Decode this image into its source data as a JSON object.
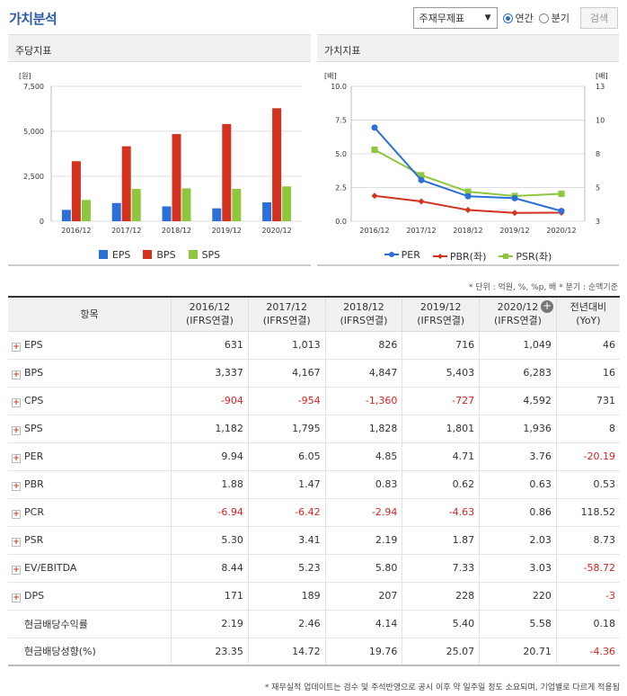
{
  "title": "가치분석",
  "controls": {
    "select_value": "주재무제표",
    "radio_annual": "연간",
    "radio_quarter": "분기",
    "search_label": "검색"
  },
  "left_panel": {
    "title": "주당지표"
  },
  "right_panel": {
    "title": "가치지표"
  },
  "chart_data": [
    {
      "type": "bar",
      "categories": [
        "2016/12",
        "2017/12",
        "2018/12",
        "2019/12",
        "2020/12"
      ],
      "series": [
        {
          "name": "EPS",
          "values": [
            631,
            1013,
            826,
            716,
            1049
          ],
          "color": "#2c6fd6"
        },
        {
          "name": "BPS",
          "values": [
            3337,
            4167,
            4847,
            5403,
            6283
          ],
          "color": "#d2321e"
        },
        {
          "name": "SPS",
          "values": [
            1182,
            1795,
            1828,
            1801,
            1936
          ],
          "color": "#8ec63f"
        }
      ],
      "ylabel": "[원]",
      "yticks": [
        "7,500",
        "5,000",
        "2,500",
        "0"
      ],
      "ylim": [
        0,
        7500
      ],
      "legend": "bottom"
    },
    {
      "type": "line",
      "categories": [
        "2016/12",
        "2017/12",
        "2018/12",
        "2019/12",
        "2020/12"
      ],
      "series": [
        {
          "name": "PER",
          "values": [
            9.94,
            6.05,
            4.85,
            4.71,
            3.76
          ],
          "color": "#2c6fd6",
          "axis": "right"
        },
        {
          "name": "PBR(좌)",
          "values": [
            1.88,
            1.47,
            0.83,
            0.62,
            0.63
          ],
          "color": "#d2321e",
          "axis": "left"
        },
        {
          "name": "PSR(좌)",
          "values": [
            5.3,
            3.41,
            2.19,
            1.87,
            2.03
          ],
          "color": "#8ec63f",
          "axis": "left"
        }
      ],
      "ylabel_left": "[배]",
      "ylabel_right": "[배]",
      "yticks_left": [
        "10.0",
        "7.5",
        "5.0",
        "2.5",
        "0.0"
      ],
      "yticks_right": [
        "13",
        "10",
        "8",
        "5",
        "3"
      ],
      "ylim_left": [
        0,
        10
      ],
      "ylim_right": [
        3,
        13
      ],
      "legend": "bottom"
    }
  ],
  "unit_note": "* 단위 : 억원, %, %p, 배    * 분기 : 순액기준",
  "table": {
    "headers": [
      "항목",
      [
        "2016/12",
        "(IFRS연결)"
      ],
      [
        "2017/12",
        "(IFRS연결)"
      ],
      [
        "2018/12",
        "(IFRS연결)"
      ],
      [
        "2019/12",
        "(IFRS연결)"
      ],
      [
        "2020/12",
        "(IFRS연결)"
      ],
      [
        "전년대비",
        "(YoY)"
      ]
    ],
    "rows": [
      {
        "label": "EPS",
        "expand": true,
        "values": [
          "631",
          "1,013",
          "826",
          "716",
          "1,049",
          "46"
        ]
      },
      {
        "label": "BPS",
        "expand": true,
        "values": [
          "3,337",
          "4,167",
          "4,847",
          "5,403",
          "6,283",
          "16"
        ]
      },
      {
        "label": "CPS",
        "expand": true,
        "values": [
          "-904",
          "-954",
          "-1,360",
          "-727",
          "4,592",
          "731"
        ]
      },
      {
        "label": "SPS",
        "expand": true,
        "values": [
          "1,182",
          "1,795",
          "1,828",
          "1,801",
          "1,936",
          "8"
        ]
      },
      {
        "label": "PER",
        "expand": true,
        "values": [
          "9.94",
          "6.05",
          "4.85",
          "4.71",
          "3.76",
          "-20.19"
        ]
      },
      {
        "label": "PBR",
        "expand": true,
        "values": [
          "1.88",
          "1.47",
          "0.83",
          "0.62",
          "0.63",
          "0.53"
        ]
      },
      {
        "label": "PCR",
        "expand": true,
        "values": [
          "-6.94",
          "-6.42",
          "-2.94",
          "-4.63",
          "0.86",
          "118.52"
        ]
      },
      {
        "label": "PSR",
        "expand": true,
        "values": [
          "5.30",
          "3.41",
          "2.19",
          "1.87",
          "2.03",
          "8.73"
        ]
      },
      {
        "label": "EV/EBITDA",
        "expand": true,
        "values": [
          "8.44",
          "5.23",
          "5.80",
          "7.33",
          "3.03",
          "-58.72"
        ]
      },
      {
        "label": "DPS",
        "expand": true,
        "values": [
          "171",
          "189",
          "207",
          "228",
          "220",
          "-3"
        ]
      },
      {
        "label": "현금배당수익률",
        "expand": false,
        "values": [
          "2.19",
          "2.46",
          "4.14",
          "5.40",
          "5.58",
          "0.18"
        ]
      },
      {
        "label": "현금배당성향(%)",
        "expand": false,
        "values": [
          "23.35",
          "14.72",
          "19.76",
          "25.07",
          "20.71",
          "-4.36"
        ]
      }
    ]
  },
  "footnote": "* 재무실적 업데이트는 검수 및 주석반영으로 공시 이후 약 일주일 정도 소요되며, 기업별로 다르게 적용됨"
}
